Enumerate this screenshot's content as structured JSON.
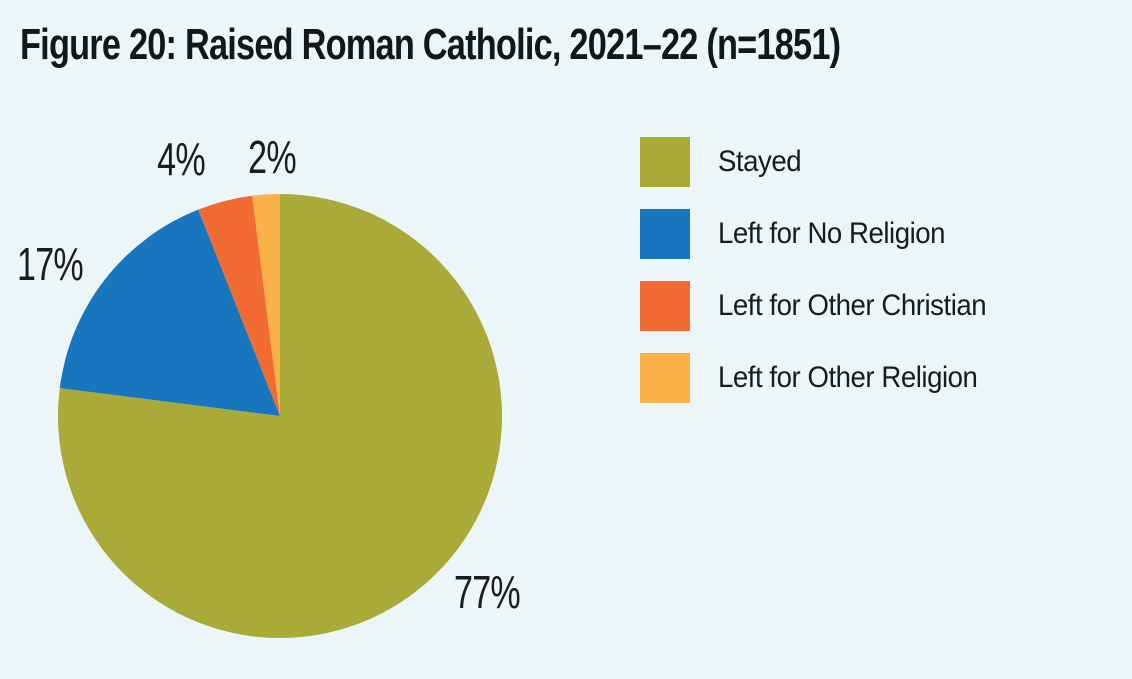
{
  "page": {
    "background": "#ecf5f7",
    "title_color": "#121718",
    "label_color": "#1a1d1e"
  },
  "header": {
    "title": "Figure 20: Raised Roman Catholic, 2021–22 (n=1851)"
  },
  "chart_data": {
    "type": "pie",
    "title": "Figure 20: Raised Roman Catholic, 2021–22 (n=1851)",
    "start_angle_deg": 0,
    "direction": "clockwise",
    "legend_position": "right",
    "slices": [
      {
        "label": "Stayed",
        "value": 77,
        "display": "77%",
        "color": "#a9aa38"
      },
      {
        "label": "Left for No Religion",
        "value": 17,
        "display": "17%",
        "color": "#1776bd"
      },
      {
        "label": "Left for Other Christian",
        "value": 4,
        "display": "4%",
        "color": "#f26b33"
      },
      {
        "label": "Left for Other Religion",
        "value": 2,
        "display": "2%",
        "color": "#f9b148"
      }
    ]
  }
}
